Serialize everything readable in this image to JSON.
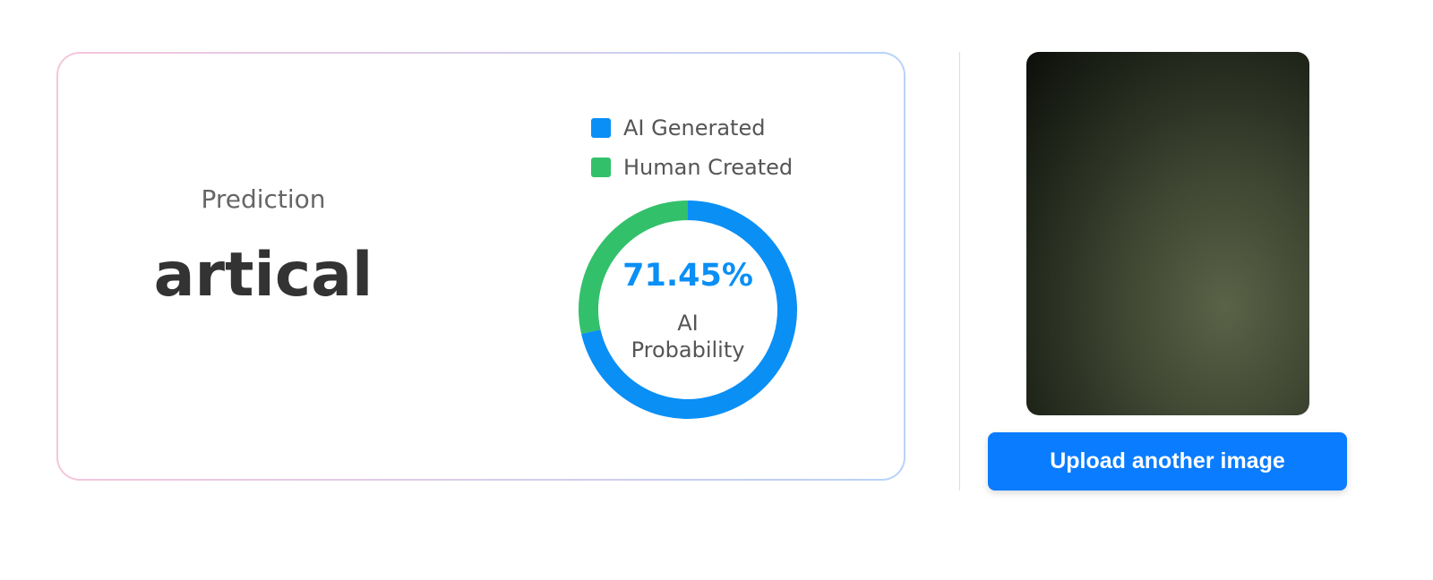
{
  "prediction": {
    "label": "Prediction",
    "value": "artical"
  },
  "chart_data": {
    "type": "doughnut",
    "categories": [
      "AI Generated",
      "Human Created"
    ],
    "values": [
      71.45,
      28.55
    ],
    "colors": [
      "#0a8ff5",
      "#33c06b"
    ],
    "center_value_label": "71.45%",
    "center_caption": "AI Probability"
  },
  "button": {
    "label": "Upload another image"
  }
}
